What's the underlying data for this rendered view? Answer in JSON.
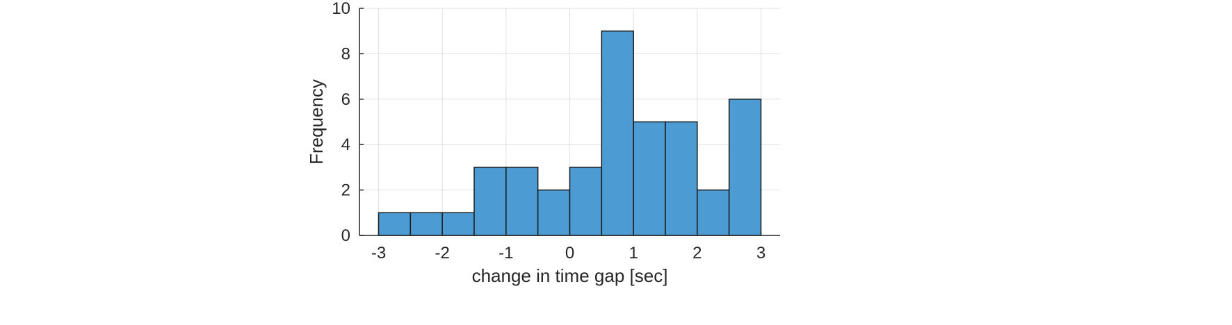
{
  "chart_data": {
    "type": "bar",
    "subtype": "histogram",
    "bin_edges": [
      -3,
      -2.5,
      -2,
      -1.5,
      -1,
      -0.5,
      0,
      0.5,
      1,
      1.5,
      2,
      2.5,
      3
    ],
    "values": [
      1,
      1,
      1,
      3,
      3,
      2,
      3,
      9,
      5,
      5,
      2,
      6
    ],
    "xlabel": "change in time gap [sec]",
    "ylabel": "Frequency",
    "xlim": [
      -3.3,
      3.3
    ],
    "ylim": [
      0,
      10
    ],
    "xticks": [
      -3,
      -2,
      -1,
      0,
      1,
      2,
      3
    ],
    "xtick_labels": [
      "-3",
      "-2",
      "-1",
      "0",
      "1",
      "2",
      "3"
    ],
    "yticks": [
      0,
      2,
      4,
      6,
      8,
      10
    ],
    "ytick_labels": [
      "0",
      "2",
      "4",
      "6",
      "8",
      "10"
    ],
    "grid": true,
    "bar_color": "#4c9bd2",
    "edge_color": "#1a1a1a"
  }
}
